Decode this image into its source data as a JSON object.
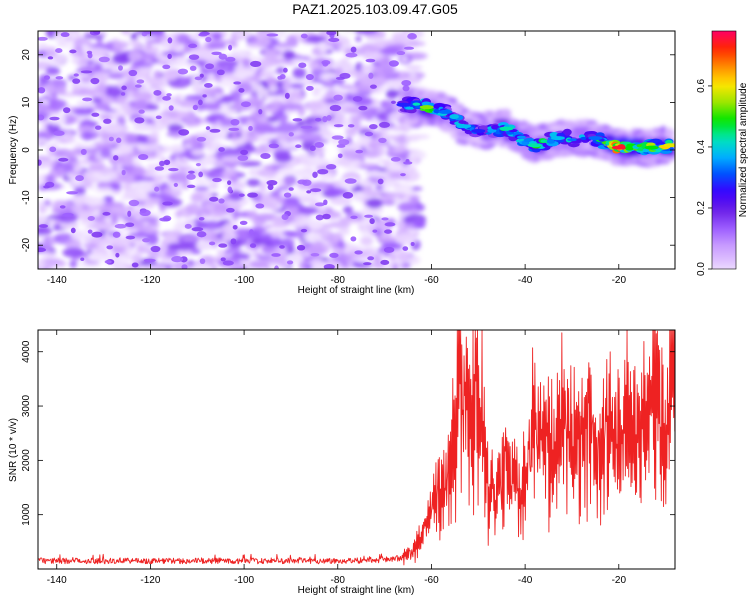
{
  "figure": {
    "title": "PAZ1.2025.103.09.47.G05"
  },
  "chart_data": [
    {
      "type": "heatmap",
      "xlabel": "Height of straight line (km)",
      "ylabel": "Frequency (Hz)",
      "xlim": [
        -144,
        -8
      ],
      "ylim": [
        -25,
        25
      ],
      "xticks": [
        -140,
        -120,
        -100,
        -80,
        -60,
        -40,
        -20
      ],
      "yticks": [
        -20,
        -10,
        0,
        10,
        20
      ],
      "colorbar": {
        "label": "Normalized spectral amplitude",
        "range": [
          0.0,
          0.78
        ],
        "ticks": [
          0.0,
          0.2,
          0.4,
          0.6
        ],
        "colormap": [
          "#ffffff",
          "#e3c8ff",
          "#c89cff",
          "#9b5cff",
          "#6a1ee6",
          "#3a00ff",
          "#0050ff",
          "#00b4ff",
          "#00e6b4",
          "#00e600",
          "#9be600",
          "#ffe600",
          "#ff8c00",
          "#ff2800",
          "#ff0064"
        ]
      },
      "features": {
        "noise_region_x": [
          -144,
          -64
        ],
        "noise_peak_amplitude": 0.2,
        "signal_track": [
          {
            "x": -66,
            "f": 9.5,
            "amp": 0.3
          },
          {
            "x": -61,
            "f": 9.0,
            "amp": 0.55
          },
          {
            "x": -57,
            "f": 8.0,
            "amp": 0.35
          },
          {
            "x": -53,
            "f": 5.0,
            "amp": 0.4
          },
          {
            "x": -50,
            "f": 4.0,
            "amp": 0.3
          },
          {
            "x": -44,
            "f": 4.5,
            "amp": 0.45
          },
          {
            "x": -38,
            "f": 1.0,
            "amp": 0.45
          },
          {
            "x": -33,
            "f": 2.5,
            "amp": 0.4
          },
          {
            "x": -25,
            "f": 2.5,
            "amp": 0.35
          },
          {
            "x": -20,
            "f": 0.5,
            "amp": 0.75
          },
          {
            "x": -13,
            "f": 0.5,
            "amp": 0.5
          },
          {
            "x": -9,
            "f": 1.0,
            "amp": 0.6
          }
        ]
      }
    },
    {
      "type": "line",
      "xlabel": "Height of straight line (km)",
      "ylabel": "SNR (10 * v/v)",
      "xlim": [
        -144,
        -8
      ],
      "ylim": [
        0,
        4400
      ],
      "xticks": [
        -140,
        -120,
        -100,
        -80,
        -60,
        -40,
        -20
      ],
      "yticks": [
        1000,
        2000,
        3000,
        4000
      ],
      "series": [
        {
          "color": "#ee2222",
          "x": [
            -144,
            -140,
            -130,
            -120,
            -110,
            -100,
            -90,
            -80,
            -70,
            -66,
            -64,
            -62,
            -60,
            -58,
            -56,
            -54,
            -52,
            -50,
            -48,
            -46,
            -44,
            -42,
            -40,
            -38,
            -36,
            -34,
            -32,
            -30,
            -28,
            -26,
            -24,
            -22,
            -20,
            -18,
            -16,
            -14,
            -12,
            -10,
            -8
          ],
          "values": [
            150,
            150,
            150,
            150,
            150,
            150,
            150,
            150,
            170,
            210,
            330,
            650,
            1100,
            1450,
            1700,
            3450,
            2500,
            3700,
            1500,
            1250,
            2000,
            1500,
            1550,
            2700,
            2500,
            2000,
            2800,
            2150,
            2400,
            2800,
            2100,
            2900,
            2300,
            2650,
            2400,
            2600,
            3100,
            2000,
            4350
          ]
        }
      ]
    }
  ]
}
